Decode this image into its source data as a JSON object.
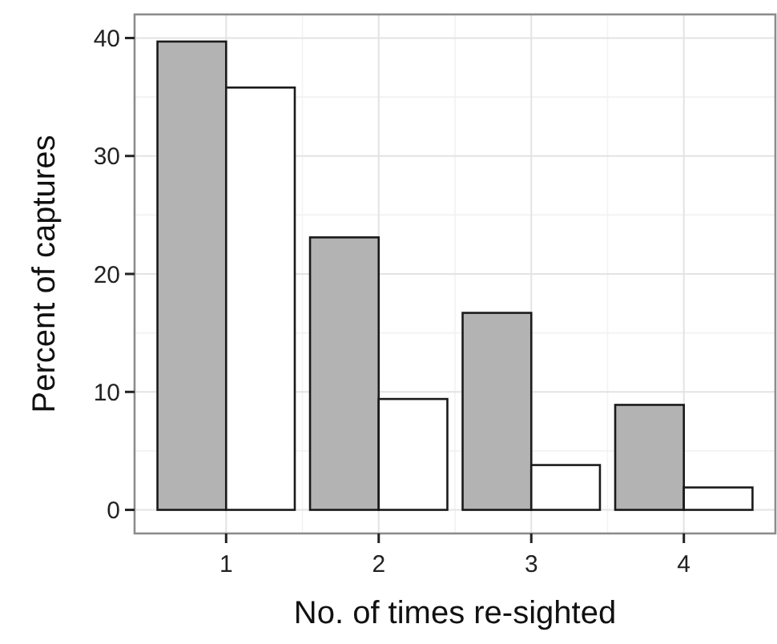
{
  "chart_data": {
    "type": "bar",
    "xlabel": "No. of times re-sighted",
    "ylabel": "Percent of captures",
    "categories": [
      "1",
      "2",
      "3",
      "4"
    ],
    "series": [
      {
        "color": "#b3b3b3",
        "values": [
          39.7,
          23.1,
          16.7,
          8.9
        ]
      },
      {
        "color": "#ffffff",
        "values": [
          35.8,
          9.4,
          3.8,
          1.9
        ]
      }
    ],
    "ylim": [
      -2,
      42
    ],
    "yticks": [
      0,
      10,
      20,
      30,
      40
    ],
    "grid": true
  }
}
